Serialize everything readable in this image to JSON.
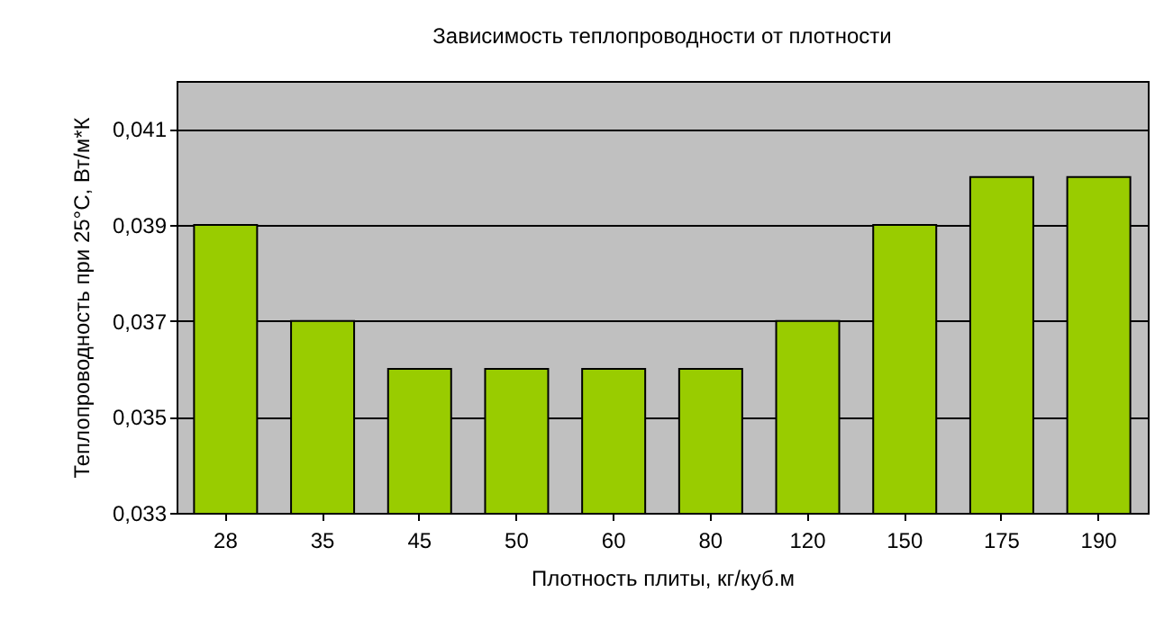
{
  "chart_data": {
    "type": "bar",
    "title": "Зависимость теплопроводности от плотности",
    "xlabel": "Плотность плиты, кг/куб.м",
    "ylabel": "Теплопроводность при 25°С, Вт/м*К",
    "categories": [
      "28",
      "35",
      "45",
      "50",
      "60",
      "80",
      "120",
      "150",
      "175",
      "190"
    ],
    "values": [
      0.039,
      0.037,
      0.036,
      0.036,
      0.036,
      0.036,
      0.037,
      0.039,
      0.04,
      0.04
    ],
    "color": "#99cc00",
    "ylim": [
      0.033,
      0.042
    ],
    "yticks": [
      {
        "value": 0.033,
        "label": "0,033"
      },
      {
        "value": 0.035,
        "label": "0,035"
      },
      {
        "value": 0.037,
        "label": "0,037"
      },
      {
        "value": 0.039,
        "label": "0,039"
      },
      {
        "value": 0.041,
        "label": "0,041"
      }
    ],
    "grid": "y"
  }
}
